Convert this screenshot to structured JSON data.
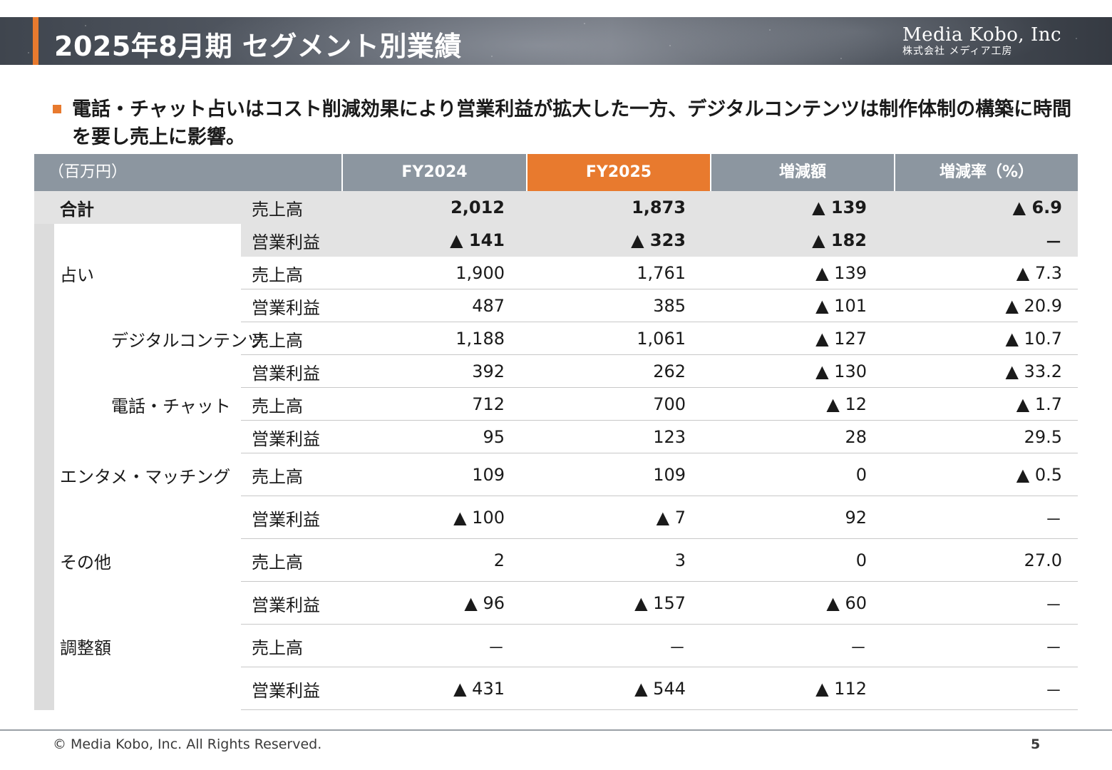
{
  "header": {
    "title": "2025年8月期 セグメント別業績",
    "logo_name": "Media Kobo, Inc",
    "logo_sub": "株式会社 メディア工房",
    "accent_color": "#e87a2e"
  },
  "headline": "電話・チャット占いはコスト削減効果により営業利益が拡大した一方、デジタルコンテンツは制作体制の構築に時間を要し売上に影響。",
  "table": {
    "unit_label": "（百万円）",
    "columns": [
      "FY2024",
      "FY2025",
      "増減額",
      "増減率（%）"
    ],
    "rows": [
      {
        "segment": "合計",
        "metric": "売上高",
        "values": [
          "2,012",
          "1,873",
          "▲ 139",
          "▲ 6.9"
        ]
      },
      {
        "segment": "",
        "metric": "営業利益",
        "values": [
          "▲ 141",
          "▲ 323",
          "▲ 182",
          "－"
        ]
      },
      {
        "segment": "占い",
        "metric": "売上高",
        "values": [
          "1,900",
          "1,761",
          "▲ 139",
          "▲ 7.3"
        ]
      },
      {
        "segment": "",
        "metric": "営業利益",
        "values": [
          "487",
          "385",
          "▲ 101",
          "▲ 20.9"
        ]
      },
      {
        "segment": "デジタルコンテンツ",
        "metric": "売上高",
        "values": [
          "1,188",
          "1,061",
          "▲ 127",
          "▲ 10.7"
        ]
      },
      {
        "segment": "",
        "metric": "営業利益",
        "values": [
          "392",
          "262",
          "▲ 130",
          "▲ 33.2"
        ]
      },
      {
        "segment": "電話・チャット",
        "metric": "売上高",
        "values": [
          "712",
          "700",
          "▲ 12",
          "▲ 1.7"
        ]
      },
      {
        "segment": "",
        "metric": "営業利益",
        "values": [
          "95",
          "123",
          "28",
          "29.5"
        ]
      },
      {
        "segment": "エンタメ・マッチング",
        "metric": "売上高",
        "values": [
          "109",
          "109",
          "0",
          "▲ 0.5"
        ]
      },
      {
        "segment": "",
        "metric": "営業利益",
        "values": [
          "▲ 100",
          "▲ 7",
          "92",
          "－"
        ]
      },
      {
        "segment": "その他",
        "metric": "売上高",
        "values": [
          "2",
          "3",
          "0",
          "27.0"
        ]
      },
      {
        "segment": "",
        "metric": "営業利益",
        "values": [
          "▲ 96",
          "▲ 157",
          "▲ 60",
          "－"
        ]
      },
      {
        "segment": "調整額",
        "metric": "売上高",
        "values": [
          "－",
          "－",
          "－",
          "－"
        ]
      },
      {
        "segment": "",
        "metric": "営業利益",
        "values": [
          "▲ 431",
          "▲ 544",
          "▲ 112",
          "－"
        ]
      }
    ]
  },
  "footer": {
    "copyright": "©  Media Kobo, Inc. All Rights Reserved.",
    "page": "5"
  }
}
